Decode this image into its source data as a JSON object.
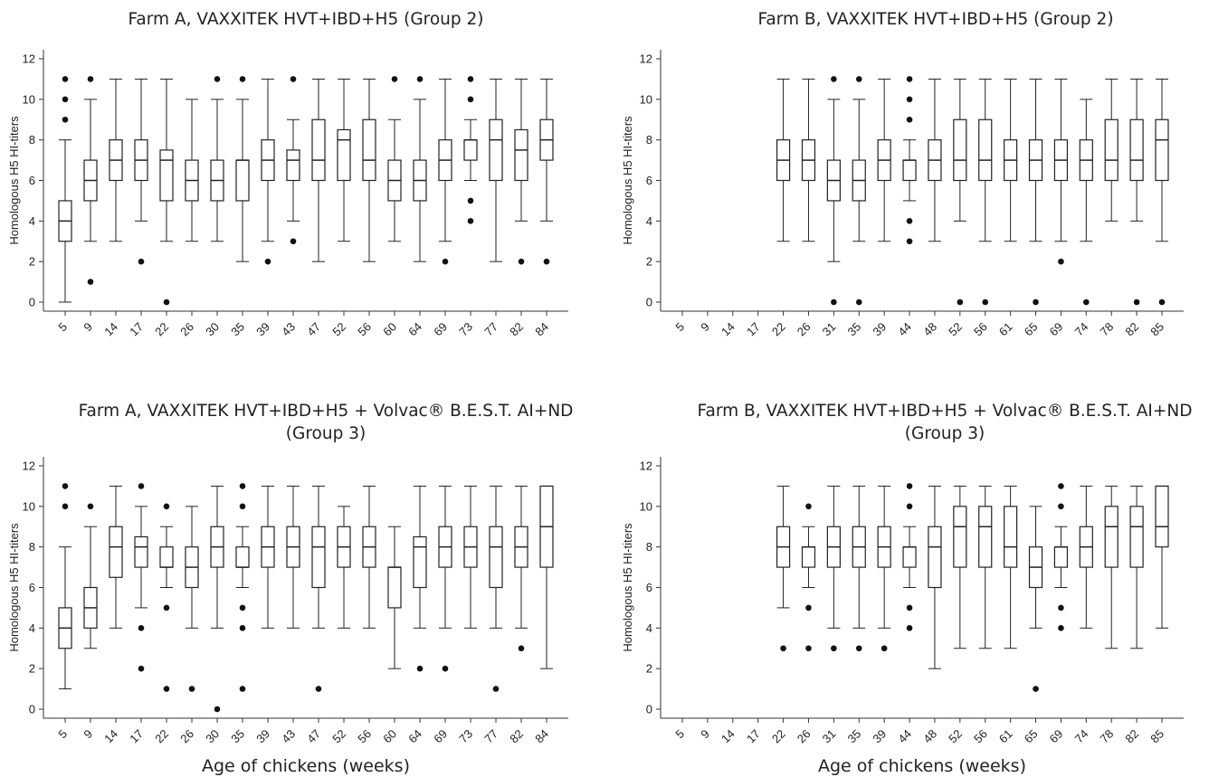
{
  "chart_data": [
    {
      "type": "boxplot",
      "title": "Farm A, VAXXITEK HVT+IBD+H5 (Group 2)",
      "xlabel": "",
      "ylabel": "Homologous H5 HI-titers",
      "ylim": [
        0,
        12
      ],
      "yticks": [
        0,
        2,
        4,
        6,
        8,
        10,
        12
      ],
      "categories": [
        "5",
        "9",
        "14",
        "17",
        "22",
        "26",
        "30",
        "35",
        "39",
        "43",
        "47",
        "52",
        "56",
        "60",
        "64",
        "69",
        "73",
        "77",
        "82",
        "84"
      ],
      "boxes": [
        {
          "min": 0,
          "q1": 3,
          "median": 4,
          "q3": 5,
          "max": 8,
          "outliers": [
            9,
            10,
            11
          ]
        },
        {
          "min": 3,
          "q1": 5,
          "median": 6,
          "q3": 7,
          "max": 10,
          "outliers": [
            11,
            1
          ]
        },
        {
          "min": 3,
          "q1": 6,
          "median": 7,
          "q3": 8,
          "max": 11,
          "outliers": []
        },
        {
          "min": 4,
          "q1": 6,
          "median": 7,
          "q3": 8,
          "max": 11,
          "outliers": [
            2
          ]
        },
        {
          "min": 3,
          "q1": 5,
          "median": 7,
          "q3": 7.5,
          "max": 11,
          "outliers": [
            0
          ]
        },
        {
          "min": 3,
          "q1": 5,
          "median": 6,
          "q3": 7,
          "max": 10,
          "outliers": []
        },
        {
          "min": 3,
          "q1": 5,
          "median": 6,
          "q3": 7,
          "max": 10,
          "outliers": [
            11
          ]
        },
        {
          "min": 2,
          "q1": 5,
          "median": 7,
          "q3": 7,
          "max": 10,
          "outliers": [
            11
          ]
        },
        {
          "min": 3,
          "q1": 6,
          "median": 7,
          "q3": 8,
          "max": 11,
          "outliers": [
            2
          ]
        },
        {
          "min": 4,
          "q1": 6,
          "median": 7,
          "q3": 7.5,
          "max": 9,
          "outliers": [
            11,
            3
          ]
        },
        {
          "min": 2,
          "q1": 6,
          "median": 7,
          "q3": 9,
          "max": 11,
          "outliers": []
        },
        {
          "min": 3,
          "q1": 6,
          "median": 8,
          "q3": 8.5,
          "max": 11,
          "outliers": []
        },
        {
          "min": 2,
          "q1": 6,
          "median": 7,
          "q3": 9,
          "max": 11,
          "outliers": []
        },
        {
          "min": 3,
          "q1": 5,
          "median": 6,
          "q3": 7,
          "max": 9,
          "outliers": [
            11
          ]
        },
        {
          "min": 2,
          "q1": 5,
          "median": 6,
          "q3": 7,
          "max": 10,
          "outliers": [
            11
          ]
        },
        {
          "min": 3,
          "q1": 6,
          "median": 7,
          "q3": 8,
          "max": 11,
          "outliers": [
            2
          ]
        },
        {
          "min": 6,
          "q1": 7,
          "median": 8,
          "q3": 8,
          "max": 9,
          "outliers": [
            11,
            10,
            5,
            4
          ]
        },
        {
          "min": 2,
          "q1": 6,
          "median": 8,
          "q3": 9,
          "max": 11,
          "outliers": []
        },
        {
          "min": 4,
          "q1": 6,
          "median": 7.5,
          "q3": 8.5,
          "max": 11,
          "outliers": [
            2
          ]
        },
        {
          "min": 4,
          "q1": 7,
          "median": 8,
          "q3": 9,
          "max": 11,
          "outliers": [
            2
          ]
        }
      ]
    },
    {
      "type": "boxplot",
      "title": "Farm B, VAXXITEK HVT+IBD+H5 (Group 2)",
      "xlabel": "",
      "ylabel": "Homologous H5 HI-titers",
      "ylim": [
        0,
        12
      ],
      "yticks": [
        0,
        2,
        4,
        6,
        8,
        10,
        12
      ],
      "categories": [
        "5",
        "9",
        "14",
        "17",
        "22",
        "26",
        "31",
        "35",
        "39",
        "44",
        "48",
        "52",
        "56",
        "61",
        "65",
        "69",
        "74",
        "78",
        "82",
        "85"
      ],
      "boxes": [
        null,
        null,
        null,
        null,
        {
          "min": 3,
          "q1": 6,
          "median": 7,
          "q3": 8,
          "max": 11,
          "outliers": []
        },
        {
          "min": 3,
          "q1": 6,
          "median": 7,
          "q3": 8,
          "max": 11,
          "outliers": []
        },
        {
          "min": 2,
          "q1": 5,
          "median": 6,
          "q3": 7,
          "max": 10,
          "outliers": [
            11,
            0
          ]
        },
        {
          "min": 3,
          "q1": 5,
          "median": 6,
          "q3": 7,
          "max": 10,
          "outliers": [
            11,
            0
          ]
        },
        {
          "min": 3,
          "q1": 6,
          "median": 7,
          "q3": 8,
          "max": 11,
          "outliers": []
        },
        {
          "min": 5,
          "q1": 6,
          "median": 7,
          "q3": 7,
          "max": 8,
          "outliers": [
            11,
            10,
            9,
            4,
            3
          ]
        },
        {
          "min": 3,
          "q1": 6,
          "median": 7,
          "q3": 8,
          "max": 11,
          "outliers": []
        },
        {
          "min": 4,
          "q1": 6,
          "median": 7,
          "q3": 9,
          "max": 11,
          "outliers": [
            0
          ]
        },
        {
          "min": 3,
          "q1": 6,
          "median": 7,
          "q3": 9,
          "max": 11,
          "outliers": [
            0
          ]
        },
        {
          "min": 3,
          "q1": 6,
          "median": 7,
          "q3": 8,
          "max": 11,
          "outliers": []
        },
        {
          "min": 3,
          "q1": 6,
          "median": 7,
          "q3": 8,
          "max": 11,
          "outliers": [
            0
          ]
        },
        {
          "min": 3,
          "q1": 6,
          "median": 7,
          "q3": 8,
          "max": 11,
          "outliers": [
            2
          ]
        },
        {
          "min": 3,
          "q1": 6,
          "median": 7,
          "q3": 8,
          "max": 10,
          "outliers": [
            0
          ]
        },
        {
          "min": 4,
          "q1": 6,
          "median": 7,
          "q3": 9,
          "max": 11,
          "outliers": []
        },
        {
          "min": 4,
          "q1": 6,
          "median": 7,
          "q3": 9,
          "max": 11,
          "outliers": [
            0
          ]
        },
        {
          "min": 3,
          "q1": 6,
          "median": 8,
          "q3": 9,
          "max": 11,
          "outliers": [
            0
          ]
        }
      ]
    },
    {
      "type": "boxplot",
      "title": "Farm A, VAXXITEK HVT+IBD+H5 + Volvac® B.E.S.T. AI+ND",
      "title_line2": "(Group 3)",
      "xlabel": "Age of chickens (weeks)",
      "ylabel": "Homologous H5 HI-titers",
      "ylim": [
        0,
        12
      ],
      "yticks": [
        0,
        2,
        4,
        6,
        8,
        10,
        12
      ],
      "categories": [
        "5",
        "9",
        "14",
        "17",
        "22",
        "26",
        "30",
        "35",
        "39",
        "43",
        "47",
        "52",
        "56",
        "60",
        "64",
        "69",
        "73",
        "77",
        "82",
        "84"
      ],
      "boxes": [
        {
          "min": 1,
          "q1": 3,
          "median": 4,
          "q3": 5,
          "max": 8,
          "outliers": [
            11,
            10
          ]
        },
        {
          "min": 3,
          "q1": 4,
          "median": 5,
          "q3": 6,
          "max": 9,
          "outliers": [
            10
          ]
        },
        {
          "min": 4,
          "q1": 6.5,
          "median": 8,
          "q3": 9,
          "max": 11,
          "outliers": []
        },
        {
          "min": 5,
          "q1": 7,
          "median": 8,
          "q3": 8.5,
          "max": 10,
          "outliers": [
            11,
            4,
            2
          ]
        },
        {
          "min": 6,
          "q1": 7,
          "median": 7,
          "q3": 8,
          "max": 9,
          "outliers": [
            10,
            5,
            1
          ]
        },
        {
          "min": 4,
          "q1": 6,
          "median": 7,
          "q3": 8,
          "max": 10,
          "outliers": [
            1
          ]
        },
        {
          "min": 4,
          "q1": 7,
          "median": 8,
          "q3": 9,
          "max": 11,
          "outliers": [
            0
          ]
        },
        {
          "min": 6,
          "q1": 7,
          "median": 7,
          "q3": 8,
          "max": 9,
          "outliers": [
            11,
            10,
            5,
            4,
            1
          ]
        },
        {
          "min": 4,
          "q1": 7,
          "median": 8,
          "q3": 9,
          "max": 11,
          "outliers": []
        },
        {
          "min": 4,
          "q1": 7,
          "median": 8,
          "q3": 9,
          "max": 11,
          "outliers": []
        },
        {
          "min": 4,
          "q1": 6,
          "median": 8,
          "q3": 9,
          "max": 11,
          "outliers": [
            1
          ]
        },
        {
          "min": 4,
          "q1": 7,
          "median": 8,
          "q3": 9,
          "max": 10,
          "outliers": []
        },
        {
          "min": 4,
          "q1": 7,
          "median": 8,
          "q3": 9,
          "max": 11,
          "outliers": []
        },
        {
          "min": 2,
          "q1": 5,
          "median": 7,
          "q3": 7,
          "max": 9,
          "outliers": []
        },
        {
          "min": 4,
          "q1": 6,
          "median": 8,
          "q3": 8.5,
          "max": 11,
          "outliers": [
            2
          ]
        },
        {
          "min": 4,
          "q1": 7,
          "median": 8,
          "q3": 9,
          "max": 11,
          "outliers": [
            2
          ]
        },
        {
          "min": 4,
          "q1": 7,
          "median": 8,
          "q3": 9,
          "max": 11,
          "outliers": []
        },
        {
          "min": 4,
          "q1": 6,
          "median": 8,
          "q3": 9,
          "max": 11,
          "outliers": [
            1
          ]
        },
        {
          "min": 4,
          "q1": 7,
          "median": 8,
          "q3": 9,
          "max": 11,
          "outliers": [
            3
          ]
        },
        {
          "min": 2,
          "q1": 7,
          "median": 9,
          "q3": 11,
          "max": 11,
          "outliers": []
        }
      ]
    },
    {
      "type": "boxplot",
      "title": "Farm B, VAXXITEK HVT+IBD+H5 + Volvac® B.E.S.T. AI+ND",
      "title_line2": "(Group 3)",
      "xlabel": "Age of chickens (weeks)",
      "ylabel": "Homologous H5 HI-titers",
      "ylim": [
        0,
        12
      ],
      "yticks": [
        0,
        2,
        4,
        6,
        8,
        10,
        12
      ],
      "categories": [
        "5",
        "9",
        "14",
        "17",
        "22",
        "26",
        "31",
        "35",
        "39",
        "44",
        "48",
        "52",
        "56",
        "61",
        "65",
        "69",
        "74",
        "78",
        "82",
        "85"
      ],
      "boxes": [
        null,
        null,
        null,
        null,
        {
          "min": 5,
          "q1": 7,
          "median": 8,
          "q3": 9,
          "max": 11,
          "outliers": [
            3
          ]
        },
        {
          "min": 6,
          "q1": 7,
          "median": 8,
          "q3": 8,
          "max": 9,
          "outliers": [
            10,
            5,
            3
          ]
        },
        {
          "min": 4,
          "q1": 7,
          "median": 8,
          "q3": 9,
          "max": 11,
          "outliers": [
            3
          ]
        },
        {
          "min": 4,
          "q1": 7,
          "median": 8,
          "q3": 9,
          "max": 11,
          "outliers": [
            3
          ]
        },
        {
          "min": 4,
          "q1": 7,
          "median": 8,
          "q3": 9,
          "max": 11,
          "outliers": [
            3
          ]
        },
        {
          "min": 6,
          "q1": 7,
          "median": 8,
          "q3": 8,
          "max": 9,
          "outliers": [
            11,
            10,
            5,
            4
          ]
        },
        {
          "min": 2,
          "q1": 6,
          "median": 8,
          "q3": 9,
          "max": 11,
          "outliers": []
        },
        {
          "min": 3,
          "q1": 7,
          "median": 9,
          "q3": 10,
          "max": 11,
          "outliers": []
        },
        {
          "min": 3,
          "q1": 7,
          "median": 9,
          "q3": 10,
          "max": 11,
          "outliers": []
        },
        {
          "min": 3,
          "q1": 7,
          "median": 8,
          "q3": 10,
          "max": 11,
          "outliers": []
        },
        {
          "min": 4,
          "q1": 6,
          "median": 7,
          "q3": 8,
          "max": 10,
          "outliers": [
            1
          ]
        },
        {
          "min": 6,
          "q1": 7,
          "median": 8,
          "q3": 8,
          "max": 9,
          "outliers": [
            11,
            10,
            5,
            4
          ]
        },
        {
          "min": 4,
          "q1": 7,
          "median": 8,
          "q3": 9,
          "max": 11,
          "outliers": []
        },
        {
          "min": 3,
          "q1": 7,
          "median": 9,
          "q3": 10,
          "max": 11,
          "outliers": []
        },
        {
          "min": 3,
          "q1": 7,
          "median": 9,
          "q3": 10,
          "max": 11,
          "outliers": []
        },
        {
          "min": 4,
          "q1": 8,
          "median": 9,
          "q3": 11,
          "max": 11,
          "outliers": []
        }
      ]
    }
  ]
}
